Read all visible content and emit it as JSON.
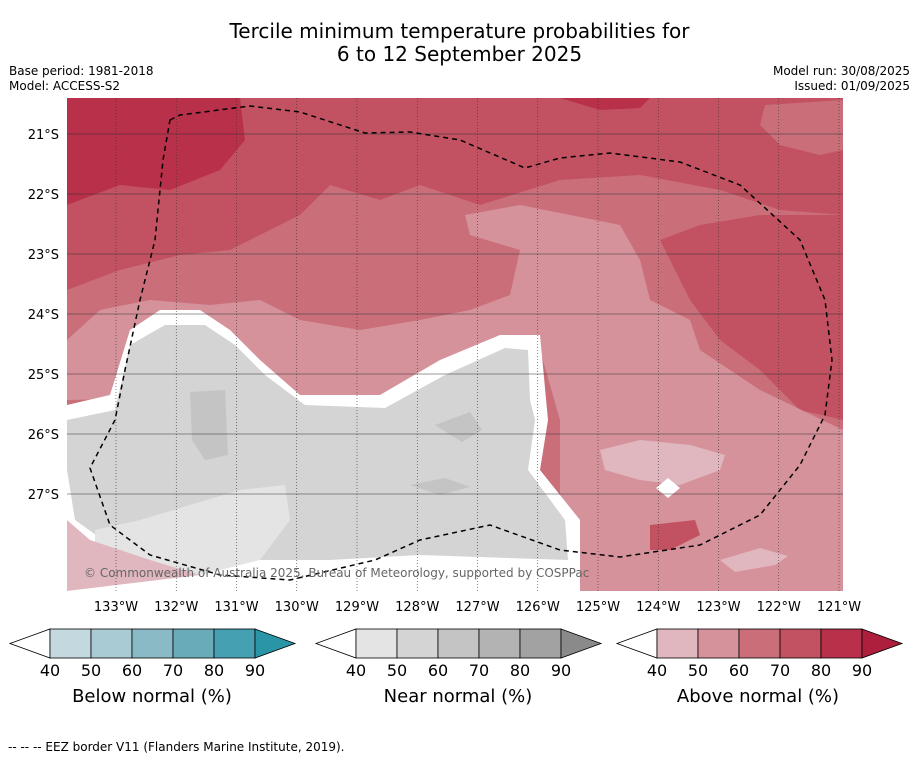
{
  "title_line1": "Tercile minimum temperature probabilities for",
  "title_line2": "6 to 12 September 2025",
  "base_period": "Base period: 1981-2018",
  "model": "Model: ACCESS-S2",
  "model_run": "Model run: 30/08/2025",
  "issued": "Issued: 01/09/2025",
  "watermark": "© Commonwealth of Australia 2025, Bureau of Meteorology, supported by COSPPac",
  "footer": "--  --  -- EEZ border V11 (Flanders Marine Institute, 2019).",
  "chart_data": {
    "type": "heatmap",
    "lat_ticks": [
      "21°S",
      "22°S",
      "23°S",
      "24°S",
      "25°S",
      "26°S",
      "27°S"
    ],
    "lon_ticks": [
      "133°W",
      "132°W",
      "131°W",
      "130°W",
      "129°W",
      "128°W",
      "127°W",
      "126°W",
      "125°W",
      "124°W",
      "123°W",
      "122°W",
      "121°W"
    ],
    "colorbars": [
      {
        "label": "Below normal (%)",
        "ticks": [
          "40",
          "50",
          "60",
          "70",
          "80",
          "90"
        ],
        "colors": [
          "#c4d9df",
          "#a9ccd4",
          "#8abac6",
          "#6aabb9",
          "#45a0b2",
          "#2b95a8"
        ]
      },
      {
        "label": "Near normal (%)",
        "ticks": [
          "40",
          "50",
          "60",
          "70",
          "80",
          "90"
        ],
        "colors": [
          "#e4e4e4",
          "#d4d4d4",
          "#c4c4c4",
          "#b3b3b3",
          "#a2a2a2",
          "#8a8a8a"
        ]
      },
      {
        "label": "Above normal (%)",
        "ticks": [
          "40",
          "50",
          "60",
          "70",
          "80",
          "90"
        ],
        "colors": [
          "#e0b7bf",
          "#d5929b",
          "#ca6f7a",
          "#c25262",
          "#b9304a",
          "#ad1f3d"
        ]
      }
    ],
    "regions": [
      {
        "category": "above",
        "level": "70-80",
        "area": "north"
      },
      {
        "category": "above",
        "level": "80-90",
        "area": "northwest"
      },
      {
        "category": "above",
        "level": "60-70",
        "area": "central band and east"
      },
      {
        "category": "above",
        "level": "50-60",
        "area": "central-east"
      },
      {
        "category": "near",
        "level": "50-60",
        "area": "southwest"
      }
    ]
  }
}
